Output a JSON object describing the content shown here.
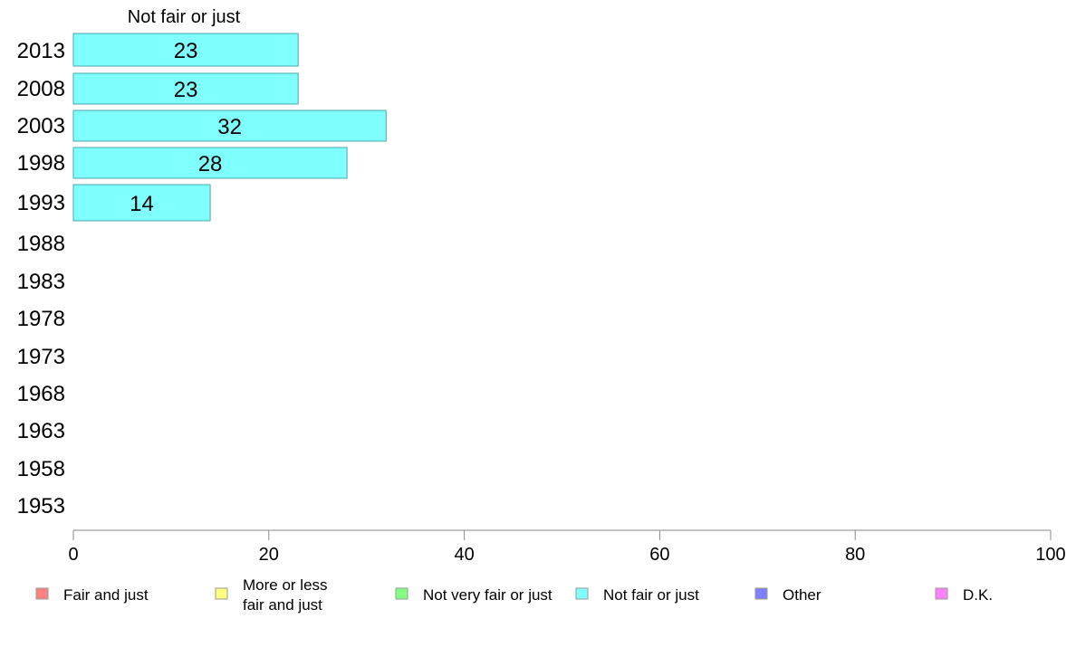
{
  "chart_data": {
    "type": "bar",
    "orientation": "horizontal",
    "title": "Not fair or just",
    "categories": [
      "2013",
      "2008",
      "2003",
      "1998",
      "1993",
      "1988",
      "1983",
      "1978",
      "1973",
      "1968",
      "1963",
      "1958",
      "1953"
    ],
    "series": [
      {
        "name": "Not fair or just",
        "color": "#80ffff",
        "values": [
          23,
          23,
          32,
          28,
          14,
          null,
          null,
          null,
          null,
          null,
          null,
          null,
          null
        ],
        "labels": [
          "23",
          "23",
          "32",
          "28",
          "14",
          "",
          "",
          "",
          "",
          "",
          "",
          "",
          ""
        ]
      }
    ],
    "xlim": [
      0,
      100
    ],
    "xticks": [
      "0",
      "20",
      "40",
      "60",
      "80",
      "100"
    ],
    "legend": {
      "placement": "bottom",
      "items": [
        {
          "label": [
            "Fair and just"
          ],
          "color": "#ff8080"
        },
        {
          "label": [
            "More or less",
            "fair and just"
          ],
          "color": "#ffff80"
        },
        {
          "label": [
            "Not very fair or just"
          ],
          "color": "#80ff80"
        },
        {
          "label": [
            "Not fair or just"
          ],
          "color": "#80ffff"
        },
        {
          "label": [
            "Other"
          ],
          "color": "#8080ff"
        },
        {
          "label": [
            "D.K."
          ],
          "color": "#ff80ff"
        }
      ]
    },
    "grid": false
  }
}
